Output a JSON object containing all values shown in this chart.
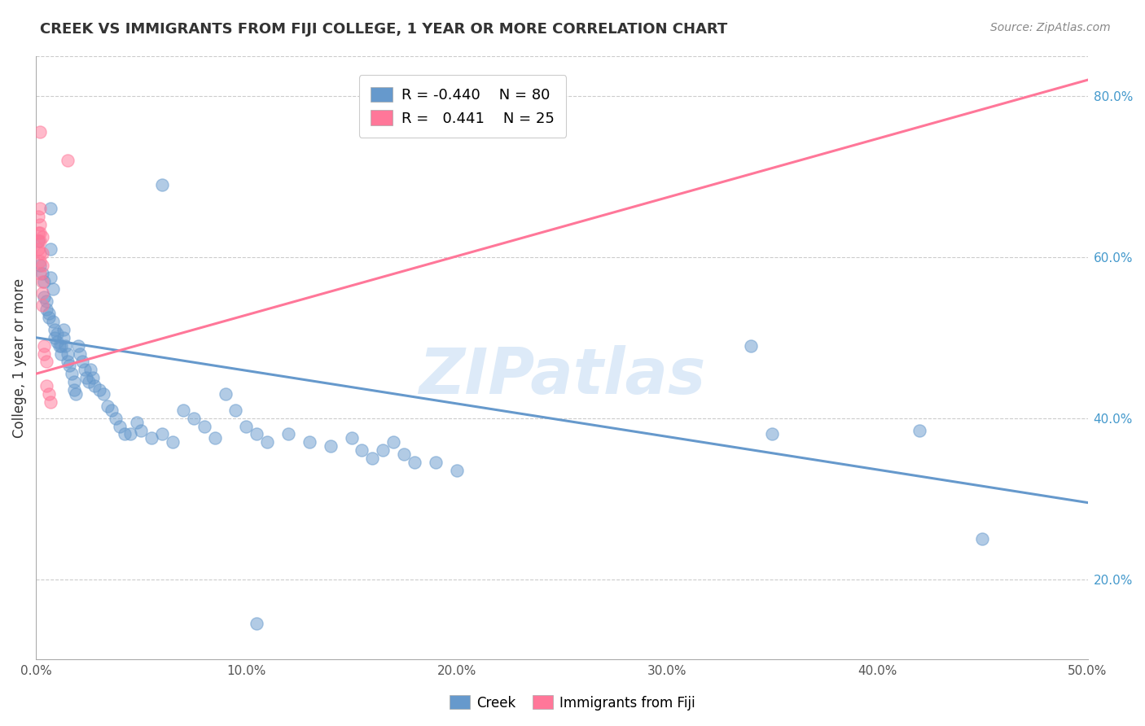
{
  "title": "CREEK VS IMMIGRANTS FROM FIJI COLLEGE, 1 YEAR OR MORE CORRELATION CHART",
  "source": "Source: ZipAtlas.com",
  "ylabel_label": "College, 1 year or more",
  "xmin": 0.0,
  "xmax": 0.5,
  "ymin": 0.1,
  "ymax": 0.85,
  "yticks": [
    0.2,
    0.4,
    0.6,
    0.8
  ],
  "ytick_labels": [
    "20.0%",
    "40.0%",
    "60.0%",
    "80.0%"
  ],
  "xticks": [
    0.0,
    0.1,
    0.2,
    0.3,
    0.4,
    0.5
  ],
  "xtick_labels": [
    "0.0%",
    "10.0%",
    "20.0%",
    "30.0%",
    "40.0%",
    "50.0%"
  ],
  "creek_color": "#6699CC",
  "fiji_color": "#FF7799",
  "creek_R": -0.44,
  "creek_N": 80,
  "fiji_R": 0.441,
  "fiji_N": 25,
  "watermark": "ZIPatlas",
  "creek_line": [
    [
      0.0,
      0.5
    ],
    [
      0.5,
      0.295
    ]
  ],
  "fiji_line": [
    [
      0.0,
      0.455
    ],
    [
      0.5,
      0.82
    ]
  ],
  "creek_points": [
    [
      0.001,
      0.62
    ],
    [
      0.002,
      0.59
    ],
    [
      0.003,
      0.58
    ],
    [
      0.004,
      0.57
    ],
    [
      0.004,
      0.55
    ],
    [
      0.005,
      0.545
    ],
    [
      0.005,
      0.535
    ],
    [
      0.006,
      0.53
    ],
    [
      0.006,
      0.525
    ],
    [
      0.007,
      0.61
    ],
    [
      0.007,
      0.575
    ],
    [
      0.008,
      0.56
    ],
    [
      0.008,
      0.52
    ],
    [
      0.009,
      0.51
    ],
    [
      0.009,
      0.5
    ],
    [
      0.01,
      0.505
    ],
    [
      0.01,
      0.495
    ],
    [
      0.011,
      0.49
    ],
    [
      0.012,
      0.49
    ],
    [
      0.012,
      0.48
    ],
    [
      0.013,
      0.51
    ],
    [
      0.013,
      0.5
    ],
    [
      0.014,
      0.49
    ],
    [
      0.015,
      0.48
    ],
    [
      0.015,
      0.47
    ],
    [
      0.016,
      0.465
    ],
    [
      0.017,
      0.455
    ],
    [
      0.018,
      0.445
    ],
    [
      0.018,
      0.435
    ],
    [
      0.019,
      0.43
    ],
    [
      0.02,
      0.49
    ],
    [
      0.021,
      0.48
    ],
    [
      0.022,
      0.47
    ],
    [
      0.023,
      0.46
    ],
    [
      0.024,
      0.45
    ],
    [
      0.025,
      0.445
    ],
    [
      0.026,
      0.46
    ],
    [
      0.027,
      0.45
    ],
    [
      0.028,
      0.44
    ],
    [
      0.03,
      0.435
    ],
    [
      0.032,
      0.43
    ],
    [
      0.034,
      0.415
    ],
    [
      0.036,
      0.41
    ],
    [
      0.038,
      0.4
    ],
    [
      0.04,
      0.39
    ],
    [
      0.042,
      0.38
    ],
    [
      0.045,
      0.38
    ],
    [
      0.048,
      0.395
    ],
    [
      0.05,
      0.385
    ],
    [
      0.055,
      0.375
    ],
    [
      0.06,
      0.38
    ],
    [
      0.065,
      0.37
    ],
    [
      0.07,
      0.41
    ],
    [
      0.075,
      0.4
    ],
    [
      0.08,
      0.39
    ],
    [
      0.085,
      0.375
    ],
    [
      0.09,
      0.43
    ],
    [
      0.095,
      0.41
    ],
    [
      0.1,
      0.39
    ],
    [
      0.105,
      0.38
    ],
    [
      0.11,
      0.37
    ],
    [
      0.12,
      0.38
    ],
    [
      0.13,
      0.37
    ],
    [
      0.14,
      0.365
    ],
    [
      0.15,
      0.375
    ],
    [
      0.155,
      0.36
    ],
    [
      0.16,
      0.35
    ],
    [
      0.165,
      0.36
    ],
    [
      0.17,
      0.37
    ],
    [
      0.175,
      0.355
    ],
    [
      0.18,
      0.345
    ],
    [
      0.19,
      0.345
    ],
    [
      0.2,
      0.335
    ],
    [
      0.06,
      0.69
    ],
    [
      0.105,
      0.145
    ],
    [
      0.34,
      0.49
    ],
    [
      0.35,
      0.38
    ],
    [
      0.42,
      0.385
    ],
    [
      0.45,
      0.25
    ],
    [
      0.007,
      0.66
    ]
  ],
  "fiji_points": [
    [
      0.001,
      0.65
    ],
    [
      0.001,
      0.63
    ],
    [
      0.001,
      0.62
    ],
    [
      0.001,
      0.61
    ],
    [
      0.002,
      0.66
    ],
    [
      0.002,
      0.64
    ],
    [
      0.002,
      0.63
    ],
    [
      0.002,
      0.62
    ],
    [
      0.002,
      0.605
    ],
    [
      0.002,
      0.595
    ],
    [
      0.002,
      0.58
    ],
    [
      0.003,
      0.625
    ],
    [
      0.003,
      0.605
    ],
    [
      0.003,
      0.59
    ],
    [
      0.003,
      0.57
    ],
    [
      0.003,
      0.555
    ],
    [
      0.003,
      0.54
    ],
    [
      0.004,
      0.49
    ],
    [
      0.004,
      0.48
    ],
    [
      0.005,
      0.47
    ],
    [
      0.005,
      0.44
    ],
    [
      0.006,
      0.43
    ],
    [
      0.007,
      0.42
    ],
    [
      0.015,
      0.72
    ],
    [
      0.002,
      0.755
    ]
  ]
}
